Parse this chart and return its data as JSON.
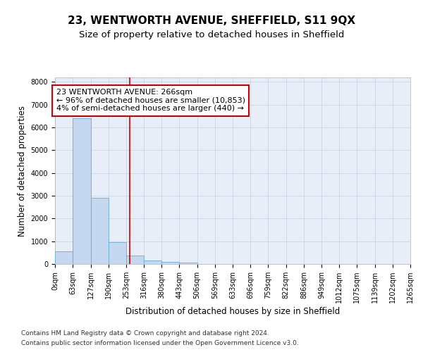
{
  "title": "23, WENTWORTH AVENUE, SHEFFIELD, S11 9QX",
  "subtitle": "Size of property relative to detached houses in Sheffield",
  "xlabel": "Distribution of detached houses by size in Sheffield",
  "ylabel": "Number of detached properties",
  "bin_edges": [
    0,
    63,
    127,
    190,
    253,
    316,
    380,
    443,
    506,
    569,
    633,
    696,
    759,
    822,
    886,
    949,
    1012,
    1075,
    1139,
    1202,
    1265
  ],
  "bar_heights": [
    560,
    6400,
    2920,
    970,
    380,
    160,
    90,
    50,
    8,
    3,
    1,
    0,
    0,
    0,
    0,
    0,
    0,
    0,
    0,
    0
  ],
  "bar_color": "#c5d8ef",
  "bar_edge_color": "#6aaad4",
  "ylim": [
    0,
    8200
  ],
  "yticks": [
    0,
    1000,
    2000,
    3000,
    4000,
    5000,
    6000,
    7000,
    8000
  ],
  "property_size": 266,
  "vline_color": "#cc0000",
  "annotation_line1": "23 WENTWORTH AVENUE: 266sqm",
  "annotation_line2": "← 96% of detached houses are smaller (10,853)",
  "annotation_line3": "4% of semi-detached houses are larger (440) →",
  "annotation_box_color": "#cc0000",
  "grid_color": "#c8d4e8",
  "background_color": "#e8eef8",
  "footer_line1": "Contains HM Land Registry data © Crown copyright and database right 2024.",
  "footer_line2": "Contains public sector information licensed under the Open Government Licence v3.0.",
  "title_fontsize": 11,
  "subtitle_fontsize": 9.5,
  "annotation_fontsize": 8,
  "tick_label_fontsize": 7,
  "ylabel_fontsize": 8.5,
  "xlabel_fontsize": 8.5,
  "footer_fontsize": 6.5
}
